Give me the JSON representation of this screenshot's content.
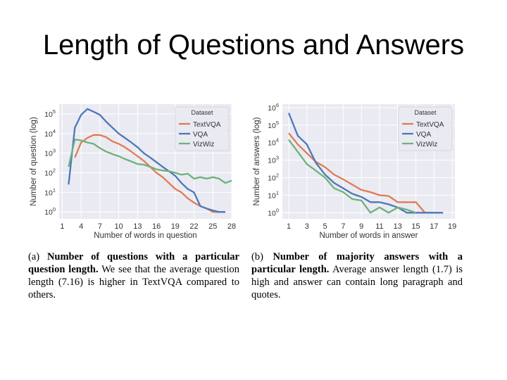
{
  "slide": {
    "title": "Length of Questions and Answers"
  },
  "captions": {
    "a": {
      "label": "(a) ",
      "bold": "Number of questions with a particular question length.",
      "rest": " We see that the average question length (7.16) is higher in TextVQA compared to others."
    },
    "b": {
      "label": "(b) ",
      "bold": "Number of majority answers with a particular length.",
      "rest": " Average answer length (1.7) is high and answer can contain long paragraph and quotes."
    }
  },
  "chart_data": [
    {
      "type": "line",
      "title": "",
      "xlabel": "Number of words in question",
      "ylabel": "Number of question (log)",
      "yscale": "log",
      "xlim": [
        0.5,
        28
      ],
      "ylim_exp": [
        -0.35,
        5.5
      ],
      "xticks": [
        1,
        4,
        7,
        10,
        13,
        16,
        19,
        22,
        25,
        28
      ],
      "yticks": [
        {
          "base": "10",
          "exp": "0",
          "value": 1
        },
        {
          "base": "10",
          "exp": "1",
          "value": 10
        },
        {
          "base": "10",
          "exp": "2",
          "value": 100
        },
        {
          "base": "10",
          "exp": "3",
          "value": 1000
        },
        {
          "base": "10",
          "exp": "4",
          "value": 10000
        },
        {
          "base": "10",
          "exp": "5",
          "value": 100000
        }
      ],
      "legend": {
        "title": "Dataset",
        "position": "top-right"
      },
      "series": [
        {
          "name": "TextVQA",
          "color": "#e07b54",
          "x": [
            3,
            4,
            5,
            6,
            7,
            8,
            9,
            10,
            11,
            12,
            13,
            14,
            15,
            16,
            17,
            18,
            19,
            20,
            21,
            22,
            23,
            24,
            25,
            26
          ],
          "y": [
            600,
            3500,
            6000,
            8500,
            8500,
            6500,
            4000,
            3000,
            2000,
            1200,
            700,
            400,
            200,
            100,
            60,
            30,
            15,
            10,
            5,
            3,
            2,
            1.5,
            1,
            1
          ]
        },
        {
          "name": "VQA",
          "color": "#4c78b8",
          "x": [
            2,
            3,
            4,
            5,
            6,
            7,
            8,
            9,
            10,
            11,
            12,
            13,
            14,
            15,
            16,
            17,
            18,
            19,
            20,
            21,
            22,
            23,
            24,
            25,
            26,
            27
          ],
          "y": [
            25,
            20000,
            90000,
            180000,
            130000,
            90000,
            40000,
            20000,
            10000,
            6000,
            3500,
            2000,
            1000,
            600,
            350,
            200,
            120,
            70,
            30,
            15,
            10,
            2,
            1.5,
            1.2,
            1,
            1
          ]
        },
        {
          "name": "VizWiz",
          "color": "#6bb27a",
          "x": [
            2,
            3,
            4,
            5,
            6,
            7,
            8,
            9,
            10,
            11,
            12,
            13,
            14,
            15,
            16,
            17,
            18,
            19,
            20,
            21,
            22,
            23,
            24,
            25,
            26,
            27,
            28
          ],
          "y": [
            200,
            5000,
            4500,
            3500,
            3000,
            1800,
            1200,
            900,
            700,
            500,
            380,
            280,
            260,
            200,
            150,
            130,
            120,
            100,
            80,
            90,
            50,
            60,
            50,
            60,
            50,
            30,
            40
          ]
        }
      ]
    },
    {
      "type": "line",
      "title": "",
      "xlabel": "Number of words in answer",
      "ylabel": "Number of answers (log)",
      "yscale": "log",
      "xlim": [
        0.3,
        19.3
      ],
      "ylim_exp": [
        -0.35,
        6.2
      ],
      "xticks": [
        1,
        3,
        5,
        7,
        9,
        11,
        13,
        15,
        17,
        19
      ],
      "yticks": [
        {
          "base": "10",
          "exp": "0",
          "value": 1
        },
        {
          "base": "10",
          "exp": "1",
          "value": 10
        },
        {
          "base": "10",
          "exp": "2",
          "value": 100
        },
        {
          "base": "10",
          "exp": "3",
          "value": 1000
        },
        {
          "base": "10",
          "exp": "4",
          "value": 10000
        },
        {
          "base": "10",
          "exp": "5",
          "value": 100000
        },
        {
          "base": "10",
          "exp": "6",
          "value": 1000000
        }
      ],
      "legend": {
        "title": "Dataset",
        "position": "top-right"
      },
      "series": [
        {
          "name": "TextVQA",
          "color": "#e07b54",
          "x": [
            1,
            2,
            3,
            4,
            5,
            6,
            7,
            8,
            9,
            10,
            11,
            12,
            13,
            14,
            15,
            16,
            17
          ],
          "y": [
            35000,
            8000,
            2500,
            800,
            400,
            150,
            80,
            40,
            20,
            15,
            10,
            9,
            4,
            4,
            4,
            1,
            1
          ]
        },
        {
          "name": "VQA",
          "color": "#4c78b8",
          "x": [
            1,
            2,
            3,
            4,
            5,
            6,
            7,
            8,
            9,
            10,
            11,
            12,
            13,
            14,
            15,
            16,
            17,
            18
          ],
          "y": [
            500000,
            25000,
            8000,
            700,
            150,
            50,
            25,
            12,
            8,
            4,
            4,
            3,
            2,
            1,
            1,
            1,
            1,
            1
          ]
        },
        {
          "name": "VizWiz",
          "color": "#6bb27a",
          "x": [
            1,
            2,
            3,
            4,
            5,
            6,
            7,
            8,
            9,
            10,
            11,
            12,
            13,
            14,
            15
          ],
          "y": [
            15000,
            3000,
            600,
            250,
            100,
            25,
            15,
            6,
            5,
            1,
            2,
            1,
            2,
            1.5,
            1
          ]
        }
      ]
    }
  ]
}
